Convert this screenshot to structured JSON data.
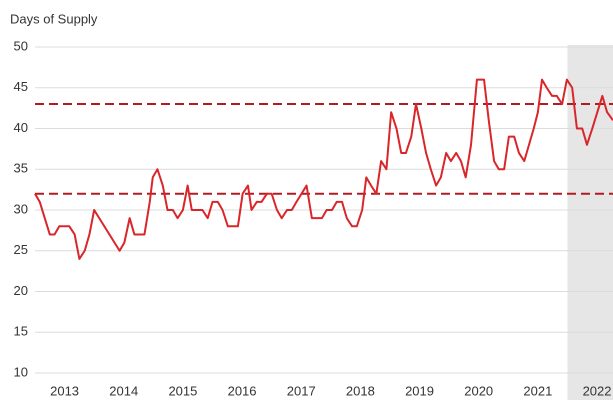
{
  "chart_data": {
    "type": "line",
    "y_label": "Days of Supply",
    "x": [
      2013.0,
      2013.08,
      2013.25,
      2013.33,
      2013.41,
      2013.58,
      2013.67,
      2013.75,
      2013.84,
      2013.92,
      2014.0,
      2014.43,
      2014.51,
      2014.6,
      2014.68,
      2014.85,
      2014.94,
      2014.99,
      2015.07,
      2015.16,
      2015.24,
      2015.33,
      2015.41,
      2015.5,
      2015.58,
      2015.65,
      2015.83,
      2015.92,
      2016.0,
      2016.09,
      2016.17,
      2016.26,
      2016.43,
      2016.51,
      2016.6,
      2016.66,
      2016.75,
      2016.83,
      2016.92,
      2017.0,
      2017.09,
      2017.17,
      2017.26,
      2017.34,
      2017.42,
      2017.59,
      2017.68,
      2017.85,
      2017.93,
      2018.02,
      2018.1,
      2018.19,
      2018.27,
      2018.36,
      2018.44,
      2018.53,
      2018.6,
      2018.68,
      2018.77,
      2018.85,
      2018.94,
      2019.02,
      2019.11,
      2019.19,
      2019.27,
      2019.36,
      2019.44,
      2019.53,
      2019.61,
      2019.69,
      2019.78,
      2019.86,
      2019.95,
      2020.03,
      2020.12,
      2020.2,
      2020.28,
      2020.37,
      2020.47,
      2020.59,
      2020.67,
      2020.76,
      2020.84,
      2020.93,
      2021.01,
      2021.1,
      2021.18,
      2021.27,
      2021.43,
      2021.5,
      2021.57,
      2021.65,
      2021.74,
      2021.82,
      2021.91,
      2021.99,
      2022.08,
      2022.16,
      2022.25,
      2022.33,
      2022.42,
      2022.59,
      2022.67,
      2022.77
    ],
    "series": [
      {
        "color": "#d9262b",
        "values": [
          32,
          31,
          27,
          27,
          28,
          28,
          27,
          24,
          25,
          27,
          30,
          25,
          26,
          29,
          27,
          27,
          31,
          34,
          35,
          33,
          30,
          30,
          29,
          30,
          33,
          30,
          30,
          29,
          31,
          31,
          30,
          28,
          28,
          32,
          33,
          30,
          31,
          31,
          32,
          32,
          30,
          29,
          30,
          30,
          31,
          33,
          29,
          29,
          30,
          30,
          31,
          31,
          29,
          28,
          28,
          30,
          34,
          33,
          32,
          36,
          35,
          42,
          40,
          37,
          37,
          39,
          43,
          40,
          37,
          35,
          33,
          34,
          37,
          36,
          37,
          36,
          34,
          38,
          46,
          46,
          41,
          36,
          35,
          35,
          39,
          39,
          37,
          36,
          40,
          42,
          46,
          45,
          44,
          44,
          43,
          46,
          45,
          40,
          40,
          38,
          40,
          44,
          42,
          41
        ]
      }
    ],
    "reference_lines": [
      43,
      32
    ],
    "reference_color": "#b01c22",
    "shaded_xrange": [
      2022.0,
      2022.77
    ],
    "shade_color": "#e6e6e6",
    "xlim": [
      2013.0,
      2022.77
    ],
    "ylim": [
      10,
      50
    ],
    "xticks": [
      {
        "value": 2013.5,
        "label": "2013"
      },
      {
        "value": 2014.5,
        "label": "2014"
      },
      {
        "value": 2015.5,
        "label": "2015"
      },
      {
        "value": 2016.5,
        "label": "2016"
      },
      {
        "value": 2017.5,
        "label": "2017"
      },
      {
        "value": 2018.5,
        "label": "2018"
      },
      {
        "value": 2019.5,
        "label": "2019"
      },
      {
        "value": 2020.5,
        "label": "2020"
      },
      {
        "value": 2021.5,
        "label": "2021"
      },
      {
        "value": 2022.5,
        "label": "2022"
      }
    ],
    "yticks": [
      10,
      15,
      20,
      25,
      30,
      35,
      40,
      45,
      50
    ],
    "grid": true
  }
}
